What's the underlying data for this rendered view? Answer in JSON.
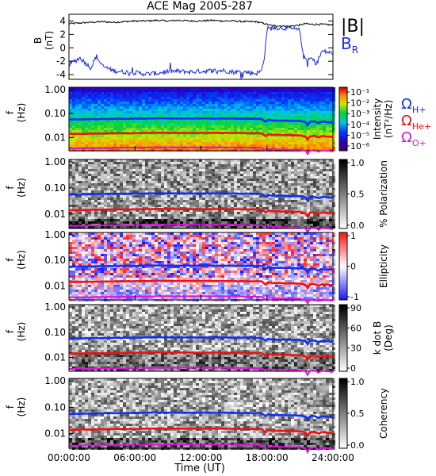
{
  "chart_data": {
    "type": "multi-panel",
    "title": "ACE Mag 2005-287",
    "x_axis": {
      "label": "Time (UT)",
      "range": [
        "00:00:00",
        "24:00:00"
      ],
      "ticks": [
        "00:00:00",
        "06:00:00",
        "12:00:00",
        "18:00:00",
        "24:00:00"
      ]
    },
    "legend": {
      "field_b": "|B|",
      "field_br": "B",
      "field_br_sub": "R",
      "omega_symbol": "Ω",
      "gyro_h": "H+",
      "gyro_he": "He+",
      "gyro_o": "O+"
    },
    "colors": {
      "b_total": "#000000",
      "b_r": "#1a2bd9",
      "h_plus": "#1030f0",
      "he_plus": "#f01010",
      "o_plus": "#e010e0"
    },
    "panels": [
      {
        "id": "B",
        "type": "line",
        "ylabel": "B",
        "yunit": "(nT)",
        "ylim": [
          -4.7,
          5.0
        ],
        "yticks": [
          "4",
          "2",
          "0",
          "-2",
          "-4"
        ],
        "series": [
          {
            "name": "|B|",
            "x_hours": [
              0,
              1,
              2,
              3,
              4,
              5,
              6,
              7,
              8,
              9,
              10,
              11,
              12,
              13,
              14,
              15,
              16,
              17,
              17.8,
              18.2,
              18.5,
              19,
              20,
              21,
              21.5,
              22,
              23,
              24
            ],
            "values": [
              3.6,
              3.7,
              3.8,
              3.9,
              3.8,
              3.9,
              4.0,
              4.0,
              4.1,
              4.0,
              4.1,
              4.0,
              4.0,
              4.1,
              4.0,
              4.0,
              3.9,
              3.9,
              3.6,
              3.4,
              3.3,
              3.3,
              3.2,
              3.4,
              3.6,
              3.5,
              3.5,
              3.4
            ]
          },
          {
            "name": "B_R",
            "x_hours": [
              0,
              0.5,
              1,
              2,
              2.5,
              3,
              4,
              5,
              6,
              7,
              8,
              9,
              10,
              11,
              12,
              13,
              14,
              15,
              16,
              17,
              17.5,
              17.8,
              18.0,
              18.3,
              19,
              20,
              21,
              21.3,
              21.7,
              22,
              22.5,
              23,
              24
            ],
            "values": [
              -2.5,
              -2.0,
              -1.5,
              -3.0,
              -1.2,
              -2.7,
              -3.4,
              -3.6,
              -3.7,
              -3.9,
              -3.8,
              -3.5,
              -3.5,
              -3.6,
              -3.5,
              -3.4,
              -3.4,
              -3.6,
              -3.6,
              -3.8,
              -3.5,
              -1.0,
              2.8,
              2.9,
              3.0,
              2.9,
              2.6,
              -1.3,
              -2.0,
              -1.5,
              -2.4,
              -0.5,
              -0.8
            ]
          }
        ]
      },
      {
        "id": "intensity",
        "type": "heatmap",
        "ylabel": "f",
        "yunit": "(Hz)",
        "yticks": [
          "1.00",
          "0.10",
          "0.01"
        ],
        "cbar_label": "Intensity",
        "cbar_unit": "(nT²/Hz)",
        "cbar_ticks": [
          "10⁻¹",
          "10⁻²",
          "10⁻³",
          "10⁻⁴",
          "10⁻⁵",
          "10⁻⁶"
        ],
        "colormap": "rainbow"
      },
      {
        "id": "polarization",
        "type": "heatmap",
        "ylabel": "f",
        "yunit": "(Hz)",
        "yticks": [
          "1.00",
          "0.10",
          "0.01"
        ],
        "cbar_label": "% Polarization",
        "cbar_ticks": [
          "1.0",
          "0.5",
          "0.0"
        ],
        "colormap": "gray"
      },
      {
        "id": "ellipticity",
        "type": "heatmap",
        "ylabel": "f",
        "yunit": "(Hz)",
        "yticks": [
          "1.00",
          "0.10",
          "0.01"
        ],
        "cbar_label": "Ellipticity",
        "cbar_ticks": [
          "1",
          "0",
          "-1"
        ],
        "colormap": "blue-white-red"
      },
      {
        "id": "kdotb",
        "type": "heatmap",
        "ylabel": "f",
        "yunit": "(Hz)",
        "yticks": [
          "1.00",
          "0.10",
          "0.01"
        ],
        "cbar_label": "k dot B",
        "cbar_unit": "(Deg)",
        "cbar_ticks": [
          "90",
          "60",
          "30",
          "0"
        ],
        "colormap": "gray"
      },
      {
        "id": "coherency",
        "type": "heatmap",
        "ylabel": "f",
        "yunit": "(Hz)",
        "yticks": [
          "1.00",
          "0.10",
          "0.01"
        ],
        "cbar_label": "Coherency",
        "cbar_ticks": [
          "1.0",
          "0.5",
          "0.0"
        ],
        "colormap": "gray"
      }
    ],
    "gyrofrequency_hz": {
      "x_hours": [
        0,
        2,
        4,
        6,
        8,
        10,
        12,
        14,
        16,
        17.5,
        17.9,
        18.1,
        18.4,
        19,
        20,
        21,
        21.5,
        21.7,
        21.9,
        22.3,
        22.7,
        23,
        23.5,
        24
      ],
      "H+": [
        0.056,
        0.058,
        0.06,
        0.061,
        0.063,
        0.062,
        0.062,
        0.062,
        0.061,
        0.06,
        0.045,
        0.055,
        0.052,
        0.051,
        0.05,
        0.049,
        0.045,
        0.032,
        0.045,
        0.047,
        0.04,
        0.046,
        0.044,
        0.042
      ],
      "He+": [
        0.014,
        0.0145,
        0.015,
        0.0152,
        0.0157,
        0.0155,
        0.0155,
        0.0155,
        0.0152,
        0.015,
        0.011,
        0.0137,
        0.013,
        0.0128,
        0.0125,
        0.0122,
        0.011,
        0.008,
        0.0112,
        0.0118,
        0.01,
        0.0115,
        0.011,
        0.0105
      ],
      "O+": [
        0.0035,
        0.0036,
        0.0037,
        0.0038,
        0.0039,
        0.0039,
        0.0039,
        0.0039,
        0.0038,
        0.0037,
        0.0028,
        0.0034,
        0.0033,
        0.0032,
        0.0031,
        0.0031,
        0.0028,
        0.002,
        0.0028,
        0.003,
        0.0025,
        0.0029,
        0.0028,
        0.0026
      ]
    }
  }
}
